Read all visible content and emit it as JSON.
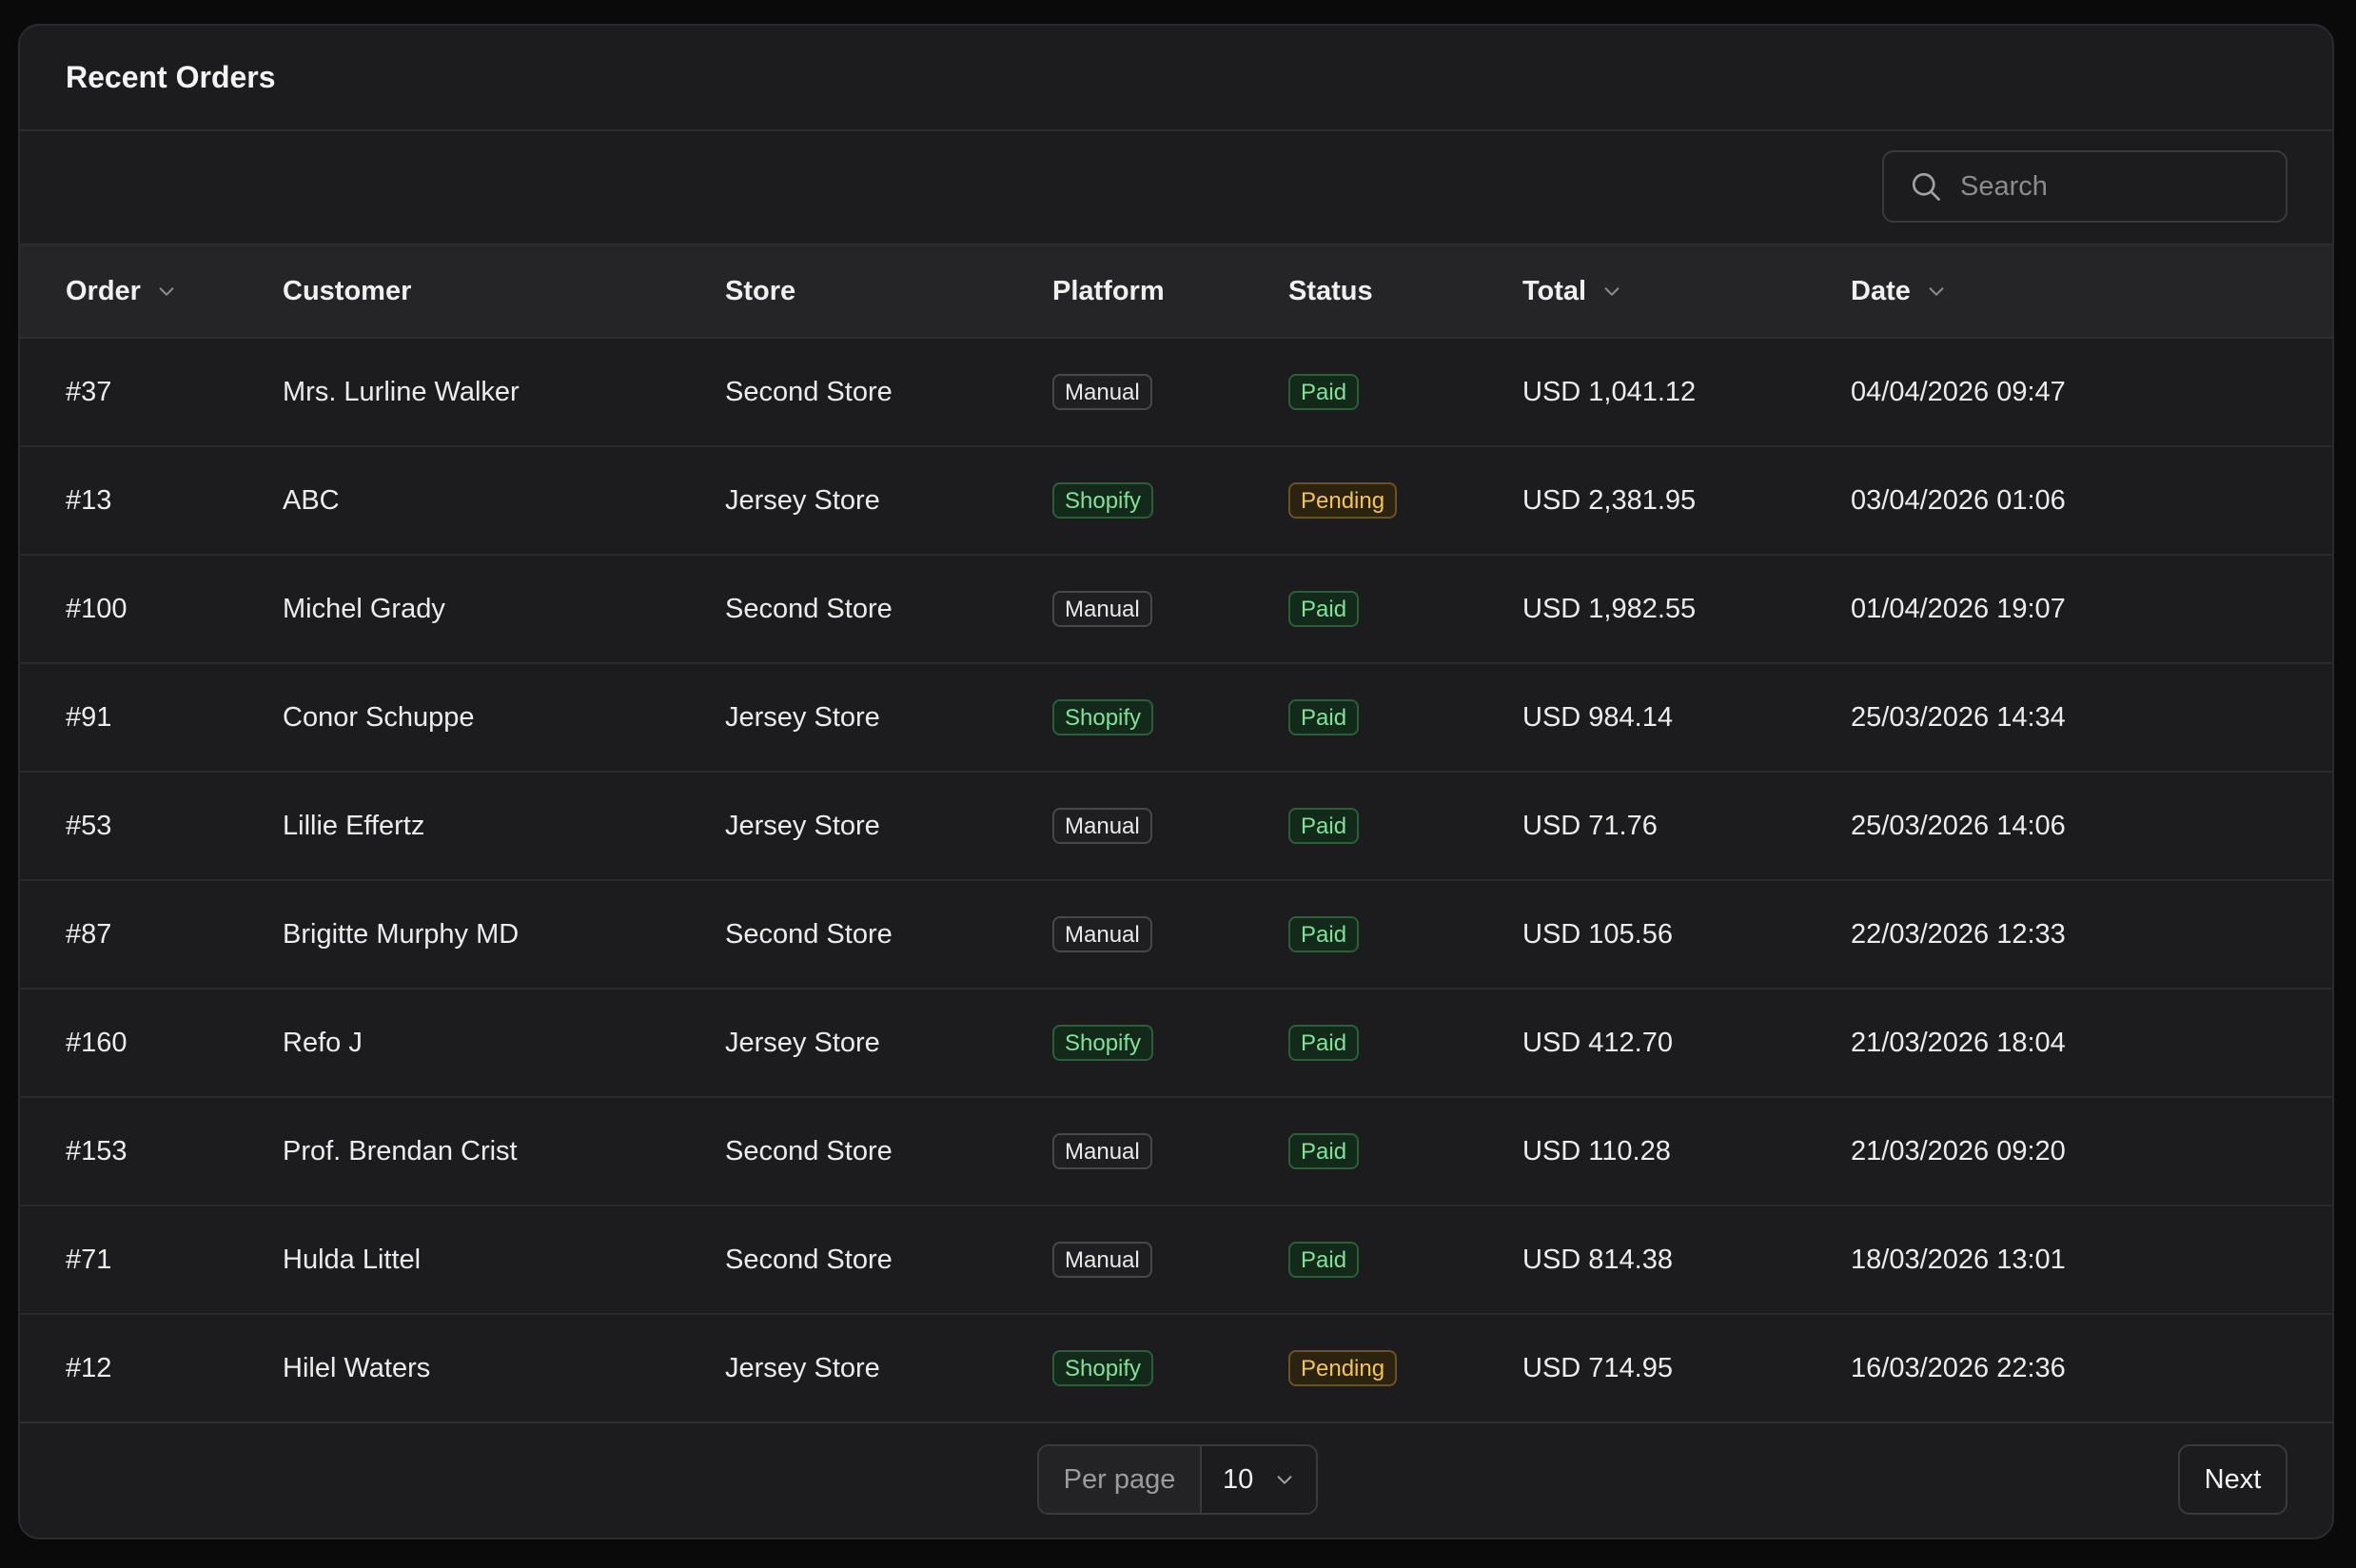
{
  "card": {
    "title": "Recent Orders"
  },
  "search": {
    "placeholder": "Search",
    "value": ""
  },
  "table": {
    "columns": [
      {
        "label": "Order",
        "sortable": true
      },
      {
        "label": "Customer",
        "sortable": false
      },
      {
        "label": "Store",
        "sortable": false
      },
      {
        "label": "Platform",
        "sortable": false
      },
      {
        "label": "Status",
        "sortable": false
      },
      {
        "label": "Total",
        "sortable": true
      },
      {
        "label": "Date",
        "sortable": true
      }
    ],
    "rows": [
      {
        "order": "#37",
        "customer": "Mrs. Lurline Walker",
        "store": "Second Store",
        "platform": "Manual",
        "status": "Paid",
        "total": "USD 1,041.12",
        "date": "04/04/2026 09:47"
      },
      {
        "order": "#13",
        "customer": "ABC",
        "store": "Jersey Store",
        "platform": "Shopify",
        "status": "Pending",
        "total": "USD 2,381.95",
        "date": "03/04/2026 01:06"
      },
      {
        "order": "#100",
        "customer": "Michel Grady",
        "store": "Second Store",
        "platform": "Manual",
        "status": "Paid",
        "total": "USD 1,982.55",
        "date": "01/04/2026 19:07"
      },
      {
        "order": "#91",
        "customer": "Conor Schuppe",
        "store": "Jersey Store",
        "platform": "Shopify",
        "status": "Paid",
        "total": "USD 984.14",
        "date": "25/03/2026 14:34"
      },
      {
        "order": "#53",
        "customer": "Lillie Effertz",
        "store": "Jersey Store",
        "platform": "Manual",
        "status": "Paid",
        "total": "USD 71.76",
        "date": "25/03/2026 14:06"
      },
      {
        "order": "#87",
        "customer": "Brigitte Murphy MD",
        "store": "Second Store",
        "platform": "Manual",
        "status": "Paid",
        "total": "USD 105.56",
        "date": "22/03/2026 12:33"
      },
      {
        "order": "#160",
        "customer": "Refo J",
        "store": "Jersey Store",
        "platform": "Shopify",
        "status": "Paid",
        "total": "USD 412.70",
        "date": "21/03/2026 18:04"
      },
      {
        "order": "#153",
        "customer": "Prof. Brendan Crist",
        "store": "Second Store",
        "platform": "Manual",
        "status": "Paid",
        "total": "USD 110.28",
        "date": "21/03/2026 09:20"
      },
      {
        "order": "#71",
        "customer": "Hulda Littel",
        "store": "Second Store",
        "platform": "Manual",
        "status": "Paid",
        "total": "USD 814.38",
        "date": "18/03/2026 13:01"
      },
      {
        "order": "#12",
        "customer": "Hilel Waters",
        "store": "Jersey Store",
        "platform": "Shopify",
        "status": "Pending",
        "total": "USD 714.95",
        "date": "16/03/2026 22:36"
      }
    ]
  },
  "pagination": {
    "per_page_label": "Per page",
    "per_page_value": "10",
    "next_label": "Next"
  },
  "colors": {
    "background": "#0a0a0b",
    "card": "#1c1c1e",
    "header_row": "#252527",
    "success": "#7fe39a",
    "warning": "#f4c54e"
  }
}
